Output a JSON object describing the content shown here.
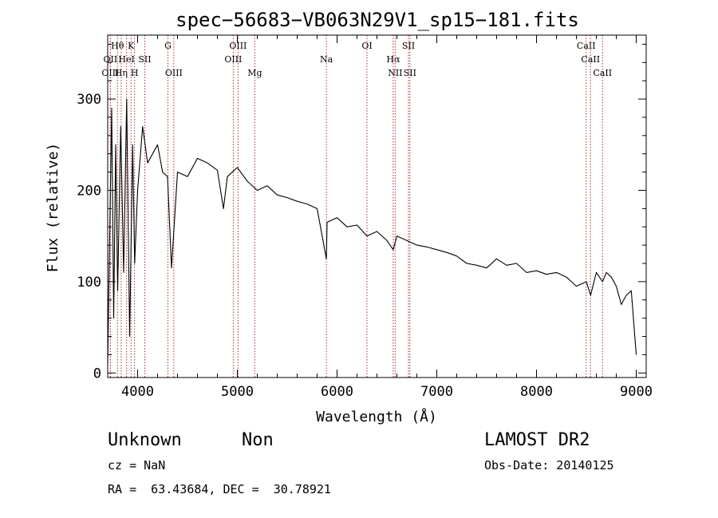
{
  "chart_data": {
    "type": "line",
    "title": "spec−56683−VB063N29V1_sp15−181.fits",
    "xlabel": "Wavelength (Å)",
    "ylabel": "Flux (relative)",
    "xlim": [
      3700,
      9100
    ],
    "ylim": [
      -5,
      370
    ],
    "x_ticks": [
      4000,
      5000,
      6000,
      7000,
      8000,
      9000
    ],
    "y_ticks": [
      0,
      100,
      200,
      300
    ],
    "grid": false,
    "line_color": "#000000",
    "marker_color": "#b03030",
    "series": [
      {
        "x": [
          3700,
          3720,
          3740,
          3760,
          3780,
          3800,
          3830,
          3860,
          3890,
          3920,
          3950,
          3970,
          4000,
          4050,
          4100,
          4150,
          4200,
          4250,
          4300,
          4340,
          4400,
          4500,
          4600,
          4700,
          4800,
          4861,
          4900,
          5000,
          5100,
          5200,
          5300,
          5400,
          5500,
          5600,
          5700,
          5800,
          5893,
          5900,
          6000,
          6100,
          6200,
          6300,
          6400,
          6500,
          6563,
          6600,
          6700,
          6800,
          6900,
          7000,
          7100,
          7200,
          7300,
          7400,
          7500,
          7600,
          7700,
          7800,
          7900,
          8000,
          8100,
          8200,
          8300,
          8400,
          8500,
          8542,
          8600,
          8662,
          8700,
          8750,
          8800,
          8850,
          8900,
          8950,
          9000
        ],
        "y": [
          10,
          150,
          290,
          60,
          250,
          90,
          270,
          110,
          300,
          40,
          250,
          120,
          200,
          270,
          230,
          240,
          250,
          220,
          215,
          115,
          220,
          215,
          235,
          230,
          222,
          180,
          215,
          225,
          210,
          200,
          205,
          195,
          192,
          188,
          185,
          180,
          125,
          165,
          170,
          160,
          162,
          150,
          155,
          145,
          135,
          150,
          145,
          140,
          138,
          135,
          132,
          128,
          120,
          118,
          115,
          125,
          118,
          120,
          110,
          112,
          108,
          110,
          105,
          95,
          100,
          85,
          110,
          100,
          110,
          105,
          95,
          75,
          85,
          90,
          20
        ]
      }
    ],
    "line_markers": [
      {
        "label": "Hθ",
        "wavelength": 3798,
        "row": 1
      },
      {
        "label": "K",
        "wavelength": 3934,
        "row": 1
      },
      {
        "label": "G",
        "wavelength": 4304,
        "row": 1
      },
      {
        "label": "OIII",
        "wavelength": 5007,
        "row": 1
      },
      {
        "label": "OI",
        "wavelength": 6300,
        "row": 1
      },
      {
        "label": "SII",
        "wavelength": 6716,
        "row": 1
      },
      {
        "label": "CaII",
        "wavelength": 8498,
        "row": 1
      },
      {
        "label": "OII",
        "wavelength": 3727,
        "row": 2
      },
      {
        "label": "HeI",
        "wavelength": 3889,
        "row": 2
      },
      {
        "label": "SII",
        "wavelength": 4072,
        "row": 2
      },
      {
        "label": "OIII",
        "wavelength": 4959,
        "row": 2
      },
      {
        "label": "Na",
        "wavelength": 5893,
        "row": 2
      },
      {
        "label": "Hα",
        "wavelength": 6563,
        "row": 2
      },
      {
        "label": "CaII",
        "wavelength": 8542,
        "row": 2
      },
      {
        "label": "OIII",
        "wavelength": 3727,
        "row": 3
      },
      {
        "label": "Hη",
        "wavelength": 3835,
        "row": 3
      },
      {
        "label": "H",
        "wavelength": 3969,
        "row": 3
      },
      {
        "label": "OIII",
        "wavelength": 4363,
        "row": 3
      },
      {
        "label": "Mg",
        "wavelength": 5175,
        "row": 3
      },
      {
        "label": "NII",
        "wavelength": 6583,
        "row": 3
      },
      {
        "label": "SII",
        "wavelength": 6731,
        "row": 3
      },
      {
        "label": "CaII",
        "wavelength": 8662,
        "row": 3
      }
    ]
  },
  "info": {
    "object_class": "Unknown",
    "subclass": "Non",
    "survey": "LAMOST DR2",
    "cz": "cz = NaN",
    "obs_date": "Obs-Date: 20140125",
    "coords": "RA =  63.43684, DEC =  30.78921"
  }
}
